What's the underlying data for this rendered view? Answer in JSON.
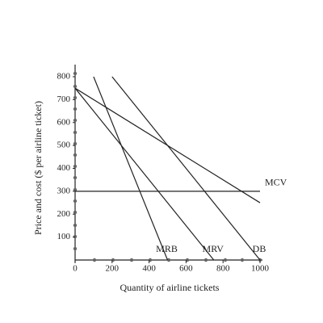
{
  "chart_data": {
    "type": "line",
    "xlabel": "Quantity of airline tickets",
    "ylabel": "Price and cost ($ per airline ticket)",
    "xlim": [
      0,
      1000
    ],
    "ylim": [
      0,
      800
    ],
    "xticks": [
      0,
      200,
      400,
      600,
      800,
      1000
    ],
    "yticks": [
      100,
      200,
      300,
      400,
      500,
      600,
      700,
      800
    ],
    "color": "#222222",
    "series": [
      {
        "name": "MCV",
        "x": [
          0,
          1000
        ],
        "values": [
          300,
          300
        ]
      },
      {
        "x": [
          0,
          1000
        ],
        "values": [
          750,
          250
        ]
      },
      {
        "name": "MRV",
        "x": [
          0,
          750
        ],
        "values": [
          750,
          0
        ]
      },
      {
        "name": "DB",
        "x": [
          200,
          1000
        ],
        "values": [
          800,
          0
        ]
      },
      {
        "name": "MRB",
        "x": [
          100,
          500
        ],
        "values": [
          800,
          0
        ]
      }
    ]
  }
}
